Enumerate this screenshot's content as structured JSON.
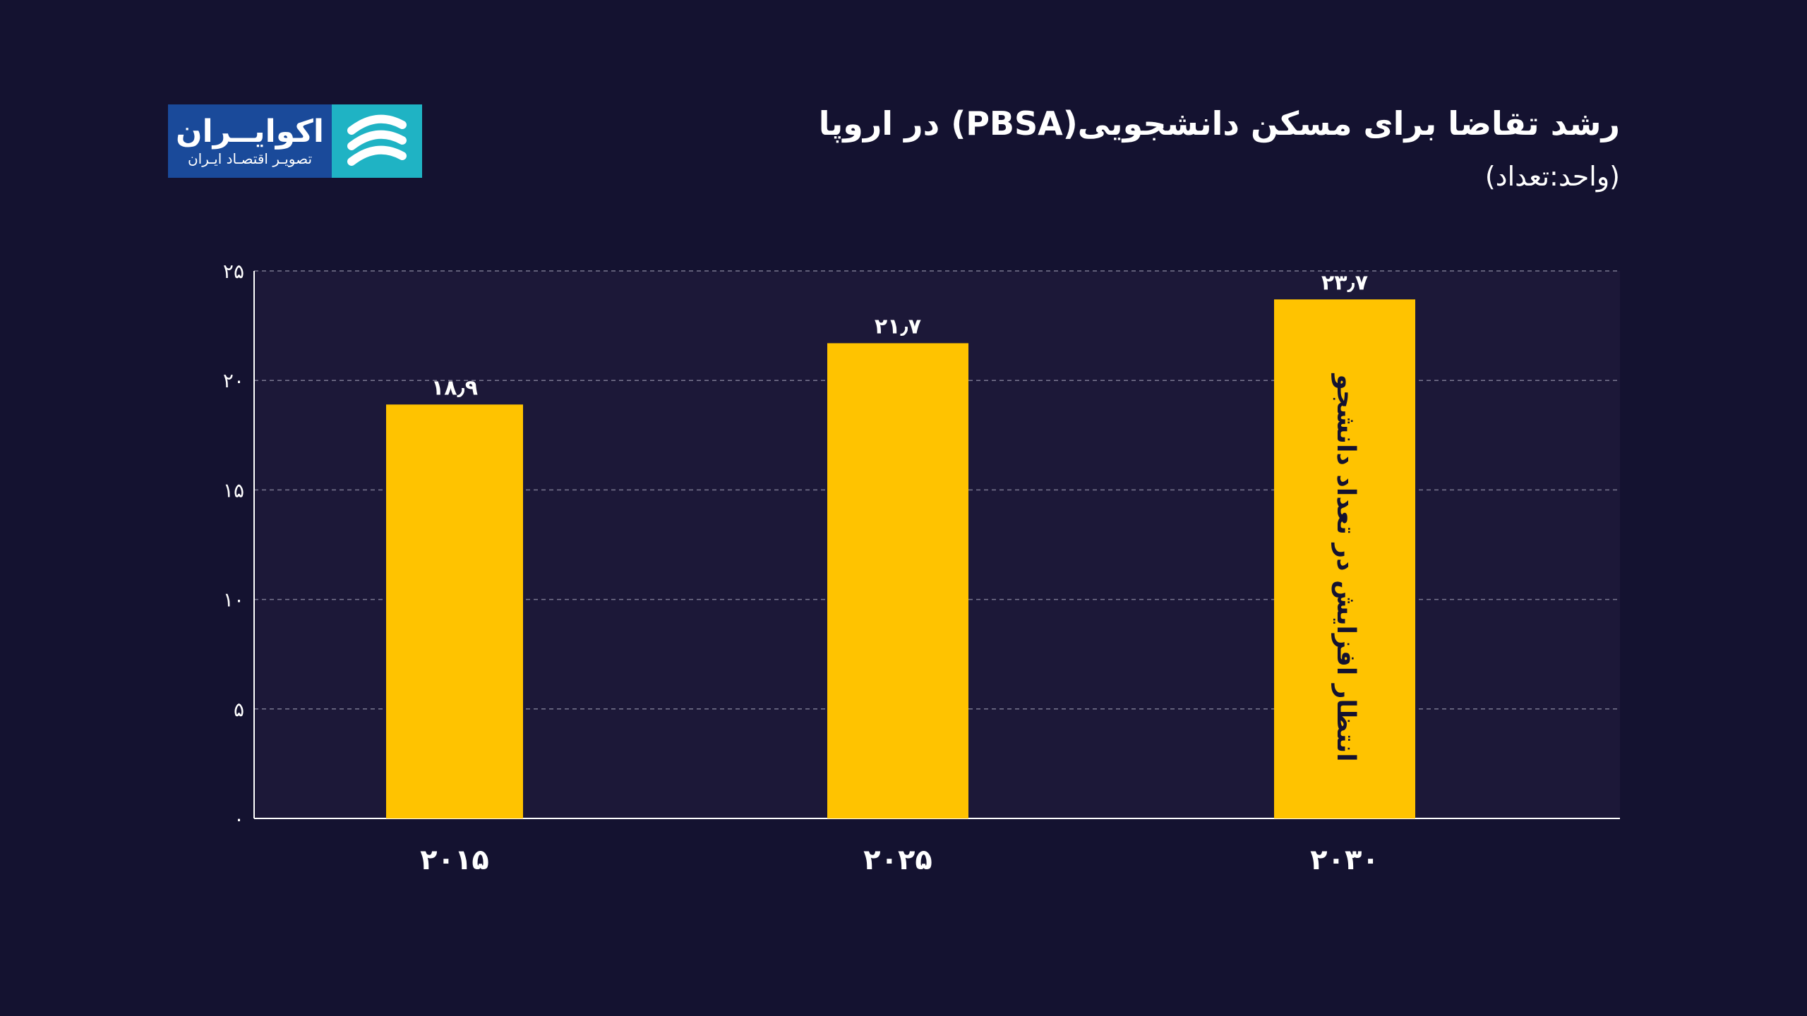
{
  "header": {
    "title": "رشد تقاضا برای مسکن دانشجویی(PBSA) در اروپا",
    "unit": "(واحد:تعداد)"
  },
  "logo": {
    "name": "اکوایــران",
    "tagline": "تصویـر اقتصـاد ایـران",
    "mark_icon": "ecoiran-logo-icon"
  },
  "colors": {
    "background": "#141230",
    "plot_background": "#1c1838",
    "bar": "#ffc300",
    "grid": "#7a7890",
    "text": "#ffffff"
  },
  "chart_data": {
    "type": "bar",
    "categories": [
      "۲۰۱۵",
      "۲۰۲۵",
      "۲۰۳۰"
    ],
    "values": [
      18.9,
      21.7,
      23.7
    ],
    "data_labels": [
      "۱۸٫۹",
      "۲۱٫۷",
      "۲۳٫۷"
    ],
    "ylim": [
      0,
      25
    ],
    "yticks": [
      0,
      5,
      10,
      15,
      20,
      25
    ],
    "ytick_labels": [
      "۰",
      "۵",
      "۱۰",
      "۱۵",
      "۲۰",
      "۲۵"
    ],
    "grid": true,
    "annotation": "انتظار افزایش در تعداد دانشجو"
  }
}
